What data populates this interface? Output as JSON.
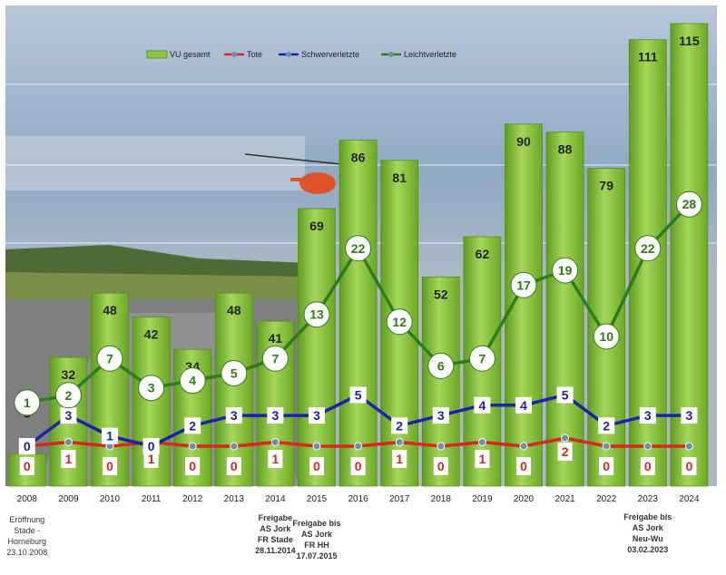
{
  "chart_data": {
    "type": "bar",
    "categories": [
      "2008",
      "2009",
      "2010",
      "2011",
      "2012",
      "2013",
      "2014",
      "2015",
      "2016",
      "2017",
      "2018",
      "2019",
      "2020",
      "2021",
      "2022",
      "2023",
      "2024"
    ],
    "series": [
      {
        "name": "VU gesamt",
        "kind": "bar",
        "color": "#7cbb2f",
        "values": [
          8,
          32,
          48,
          42,
          34,
          48,
          41,
          69,
          86,
          81,
          52,
          62,
          90,
          88,
          79,
          111,
          115
        ]
      },
      {
        "name": "Tote",
        "kind": "line",
        "color": "#d42a1e",
        "values": [
          0,
          1,
          0,
          1,
          0,
          0,
          1,
          0,
          0,
          1,
          0,
          1,
          0,
          2,
          0,
          0,
          0
        ]
      },
      {
        "name": "Schwerverletzte",
        "kind": "line",
        "color": "#1a23a8",
        "values": [
          0,
          3,
          1,
          0,
          2,
          3,
          3,
          3,
          5,
          2,
          3,
          4,
          4,
          5,
          2,
          3,
          3
        ]
      },
      {
        "name": "Leichtverletzte",
        "kind": "line",
        "color": "#2e7d1a",
        "values": [
          1,
          2,
          7,
          3,
          4,
          5,
          7,
          13,
          22,
          12,
          6,
          7,
          17,
          19,
          10,
          22,
          28
        ]
      }
    ],
    "legend_position": "top",
    "grid": false,
    "annotations": [
      {
        "category": "2008",
        "text": [
          "Eröffnung",
          "Stade -",
          "Horneburg",
          "23.10.2008"
        ]
      },
      {
        "category": "2014",
        "text": [
          "Freigabe",
          "AS Jork",
          "FR Stade",
          "28.11.2014"
        ]
      },
      {
        "category": "2015",
        "text": [
          "Freigabe bis",
          "AS Jork",
          "FR HH",
          "17.07.2015"
        ]
      },
      {
        "category": "2023",
        "text": [
          "Freigabe bis",
          "AS Jork",
          "Neu-Wu",
          "03.02.2023"
        ]
      }
    ]
  }
}
